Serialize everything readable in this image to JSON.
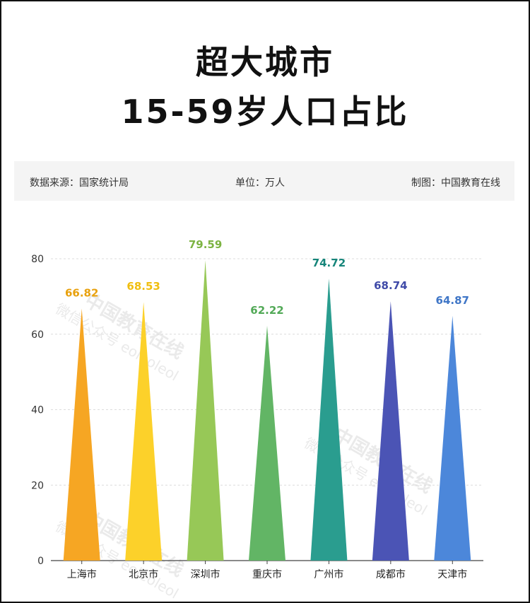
{
  "header": {
    "title_line1": "超大城市",
    "title_line2": "15-59岁人口占比"
  },
  "info": {
    "source": "数据来源：国家统计局",
    "unit": "单位：万人",
    "maker": "制图：中国教育在线"
  },
  "watermark": {
    "line1": "中国教育在线",
    "line2": "微信公众号 eoleoleol"
  },
  "chart_data": {
    "type": "bar",
    "categories": [
      "上海市",
      "北京市",
      "深圳市",
      "重庆市",
      "广州市",
      "成都市",
      "天津市"
    ],
    "values": [
      66.82,
      68.53,
      79.59,
      62.22,
      74.72,
      68.74,
      64.87
    ],
    "colors": [
      "#f6a623",
      "#fcd12a",
      "#97c857",
      "#62b565",
      "#2a9d8f",
      "#4b54b5",
      "#4c87da"
    ],
    "label_colors": [
      "#e8a10e",
      "#f0be10",
      "#7cb342",
      "#52a957",
      "#16857a",
      "#3f4aa8",
      "#3f76c7"
    ],
    "yticks": [
      0,
      20,
      40,
      60,
      80
    ],
    "ylim": [
      0,
      80
    ],
    "grid": true,
    "bar_shape": "triangle"
  }
}
